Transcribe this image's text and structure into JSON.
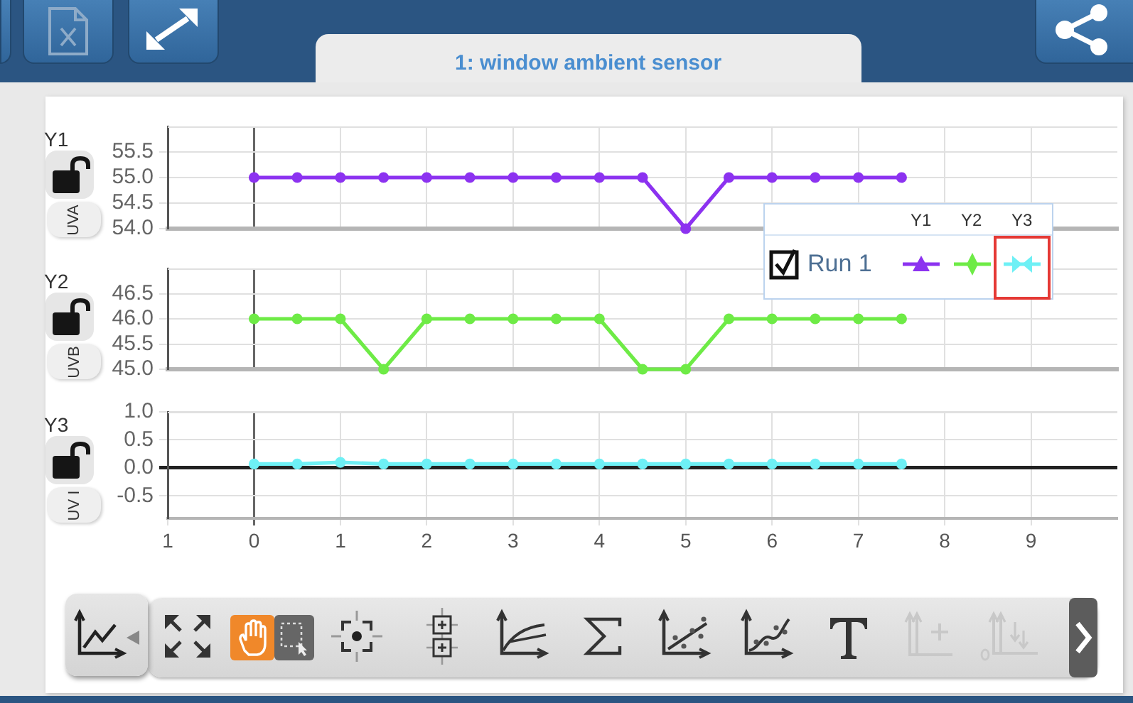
{
  "chart_data": [
    {
      "type": "line",
      "title": "1: window ambient sensor",
      "ylabel": "UVA",
      "annotations": [
        "Y1"
      ],
      "x": [
        0,
        0.5,
        1,
        1.5,
        2,
        2.5,
        3,
        3.5,
        4,
        4.5,
        5,
        5.5,
        6,
        6.5,
        7,
        7.5
      ],
      "series": [
        {
          "name": "Run 1",
          "color": "#8c32f0",
          "values": [
            55,
            55,
            55,
            55,
            55,
            55,
            55,
            55,
            55,
            55,
            54,
            55,
            55,
            55,
            55,
            55
          ]
        }
      ],
      "xlim": [
        -1,
        10
      ],
      "xticks": [
        0,
        1,
        2,
        3,
        4,
        5,
        6,
        7,
        8,
        9
      ],
      "ylim": [
        54,
        56
      ],
      "yticks": [
        {
          "value": 54,
          "label": "54.0"
        },
        54.5,
        {
          "value": 55,
          "label": "55.0"
        },
        55.5
      ],
      "grid": true,
      "marker": "circle",
      "legend": "bottom right",
      "tick_labels": "y"
    },
    {
      "type": "line",
      "ylabel": "UVB",
      "annotations": [
        "Y2"
      ],
      "x": [
        0,
        0.5,
        1,
        1.5,
        2,
        2.5,
        3,
        3.5,
        4,
        4.5,
        5,
        5.5,
        6,
        6.5,
        7,
        7.5
      ],
      "series": [
        {
          "color": "#6eeb46",
          "values": [
            46,
            46,
            46,
            45,
            46,
            46,
            46,
            46,
            46,
            45,
            45,
            46,
            46,
            46,
            46,
            46
          ]
        }
      ],
      "xlim": [
        -1,
        10
      ],
      "xticks": [
        0,
        1,
        2,
        3,
        4,
        5,
        6,
        7,
        8,
        9
      ],
      "ylim": [
        45,
        47
      ],
      "yticks": [
        {
          "value": 45,
          "label": "45.0"
        },
        45.5,
        {
          "value": 46,
          "label": "46.0"
        },
        46.5
      ],
      "grid": true,
      "marker": "circle",
      "tick_labels": "y"
    },
    {
      "type": "line",
      "ylabel": "UV I",
      "annotations": [
        "Y3"
      ],
      "x": [
        0,
        0.5,
        1,
        1.5,
        2,
        2.5,
        3,
        3.5,
        4,
        4.5,
        5,
        5.5,
        6,
        6.5,
        7,
        7.5
      ],
      "series": [
        {
          "color": "#6ef0f5",
          "values": [
            0.07,
            0.07,
            0.1,
            0.07,
            0.07,
            0.07,
            0.07,
            0.07,
            0.07,
            0.07,
            0.07,
            0.07,
            0.07,
            0.07,
            0.07,
            0.07
          ]
        }
      ],
      "xlim": [
        -1,
        10
      ],
      "xticks": [
        {
          "value": -1,
          "label": "1"
        },
        0,
        1,
        2,
        3,
        4,
        5,
        6,
        7,
        8,
        9
      ],
      "ylim": [
        -0.9,
        1
      ],
      "yticks": [
        -0.5,
        {
          "value": 0,
          "label": "0.0"
        },
        0.5,
        {
          "value": 1,
          "label": "1.0"
        }
      ],
      "grid": true,
      "marker": "circle"
    }
  ]
}
